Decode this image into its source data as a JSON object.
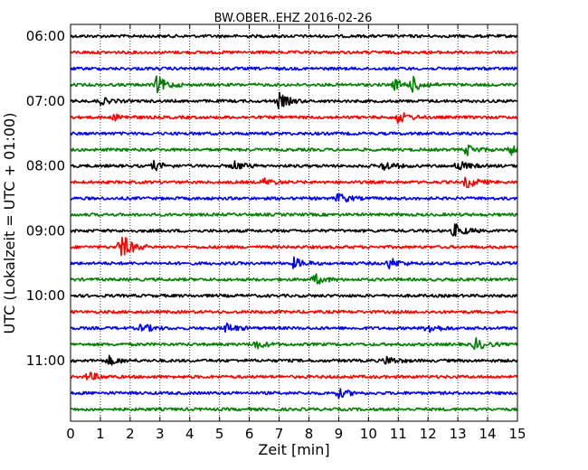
{
  "chart_data": {
    "type": "line",
    "title": "BW.OBER..EHZ 2016-02-26",
    "xlabel": "Zeit  [min]",
    "ylabel": "UTC (Lokalzeit = UTC + 01:00)",
    "xlim": [
      0,
      15
    ],
    "x_ticks": [
      "0",
      "1",
      "2",
      "3",
      "4",
      "5",
      "6",
      "7",
      "8",
      "9",
      "10",
      "11",
      "12",
      "13",
      "14",
      "15"
    ],
    "y_ticks": [
      "06:00",
      "07:00",
      "08:00",
      "09:00",
      "10:00",
      "11:00"
    ],
    "y_tick_rows": [
      0,
      4,
      8,
      12,
      16,
      20
    ],
    "grid": "vertical dotted",
    "rows_per_hour": 4,
    "row_minutes": 15,
    "trace_colors": [
      "#000000",
      "#ff0000",
      "#0000ff",
      "#008000"
    ],
    "rows": [
      {
        "start": "06:00",
        "events": []
      },
      {
        "start": "06:15",
        "events": []
      },
      {
        "start": "06:30",
        "events": []
      },
      {
        "start": "06:45",
        "events": [
          {
            "t": 2.9,
            "amp": 1.0
          },
          {
            "t": 11.5,
            "amp": 0.8
          },
          {
            "t": 10.9,
            "amp": 0.6
          }
        ]
      },
      {
        "start": "07:00",
        "events": [
          {
            "t": 7.0,
            "amp": 0.9
          },
          {
            "t": 1.0,
            "amp": 0.4
          }
        ]
      },
      {
        "start": "07:15",
        "events": [
          {
            "t": 11.0,
            "amp": 0.7
          },
          {
            "t": 1.5,
            "amp": 0.3
          }
        ]
      },
      {
        "start": "07:30",
        "events": []
      },
      {
        "start": "07:45",
        "events": [
          {
            "t": 13.3,
            "amp": 0.6
          },
          {
            "t": 14.8,
            "amp": 0.6
          }
        ]
      },
      {
        "start": "08:00",
        "events": [
          {
            "t": 2.8,
            "amp": 0.5
          },
          {
            "t": 5.5,
            "amp": 0.5
          },
          {
            "t": 10.5,
            "amp": 0.6
          },
          {
            "t": 13.0,
            "amp": 0.6
          }
        ]
      },
      {
        "start": "08:15",
        "events": [
          {
            "t": 13.3,
            "amp": 0.7
          },
          {
            "t": 6.5,
            "amp": 0.4
          }
        ]
      },
      {
        "start": "08:30",
        "events": [
          {
            "t": 9.0,
            "amp": 0.6
          }
        ]
      },
      {
        "start": "08:45",
        "events": []
      },
      {
        "start": "09:00",
        "events": [
          {
            "t": 12.9,
            "amp": 0.8
          }
        ]
      },
      {
        "start": "09:15",
        "events": [
          {
            "t": 1.7,
            "amp": 1.6
          }
        ]
      },
      {
        "start": "09:30",
        "events": [
          {
            "t": 7.5,
            "amp": 0.6
          },
          {
            "t": 10.7,
            "amp": 0.6
          }
        ]
      },
      {
        "start": "09:45",
        "events": [
          {
            "t": 8.2,
            "amp": 0.6
          }
        ]
      },
      {
        "start": "10:00",
        "events": []
      },
      {
        "start": "10:15",
        "events": []
      },
      {
        "start": "10:30",
        "events": [
          {
            "t": 5.2,
            "amp": 0.6
          },
          {
            "t": 12.0,
            "amp": 0.6
          },
          {
            "t": 2.4,
            "amp": 0.5
          }
        ]
      },
      {
        "start": "10:45",
        "events": [
          {
            "t": 13.6,
            "amp": 0.7
          },
          {
            "t": 6.2,
            "amp": 0.5
          }
        ]
      },
      {
        "start": "11:00",
        "events": [
          {
            "t": 1.3,
            "amp": 0.5
          },
          {
            "t": 10.6,
            "amp": 0.5
          }
        ]
      },
      {
        "start": "11:15",
        "events": [
          {
            "t": 0.6,
            "amp": 0.5
          }
        ]
      },
      {
        "start": "11:30",
        "events": [
          {
            "t": 9.0,
            "amp": 0.5
          }
        ]
      },
      {
        "start": "11:45",
        "events": []
      }
    ]
  }
}
